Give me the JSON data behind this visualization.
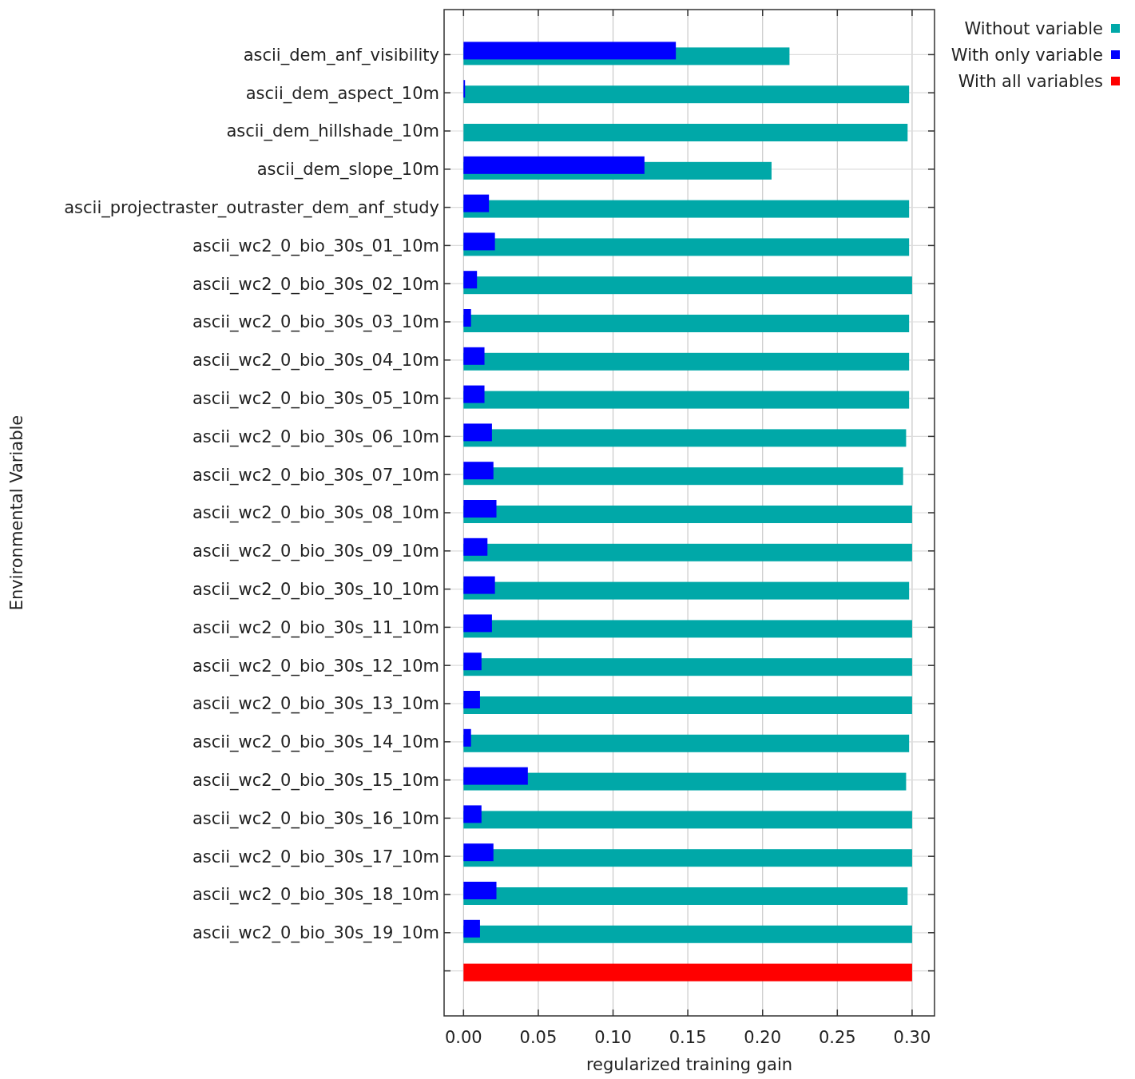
{
  "chart_data": {
    "type": "bar",
    "orientation": "horizontal",
    "xlabel": "regularized training gain",
    "ylabel": "Environmental Variable",
    "categories": [
      "ascii_dem_anf_visibility",
      "ascii_dem_aspect_10m",
      "ascii_dem_hillshade_10m",
      "ascii_dem_slope_10m",
      "ascii_projectraster_outraster_dem_anf_study",
      "ascii_wc2_0_bio_30s_01_10m",
      "ascii_wc2_0_bio_30s_02_10m",
      "ascii_wc2_0_bio_30s_03_10m",
      "ascii_wc2_0_bio_30s_04_10m",
      "ascii_wc2_0_bio_30s_05_10m",
      "ascii_wc2_0_bio_30s_06_10m",
      "ascii_wc2_0_bio_30s_07_10m",
      "ascii_wc2_0_bio_30s_08_10m",
      "ascii_wc2_0_bio_30s_09_10m",
      "ascii_wc2_0_bio_30s_10_10m",
      "ascii_wc2_0_bio_30s_11_10m",
      "ascii_wc2_0_bio_30s_12_10m",
      "ascii_wc2_0_bio_30s_13_10m",
      "ascii_wc2_0_bio_30s_14_10m",
      "ascii_wc2_0_bio_30s_15_10m",
      "ascii_wc2_0_bio_30s_16_10m",
      "ascii_wc2_0_bio_30s_17_10m",
      "ascii_wc2_0_bio_30s_18_10m",
      "ascii_wc2_0_bio_30s_19_10m",
      null
    ],
    "series": [
      {
        "name": "Without variable",
        "color": "#00a8a8",
        "values": [
          0.218,
          0.298,
          0.297,
          0.206,
          0.298,
          0.298,
          0.3,
          0.298,
          0.298,
          0.298,
          0.296,
          0.294,
          0.3,
          0.3,
          0.298,
          0.3,
          0.3,
          0.3,
          0.298,
          0.296,
          0.3,
          0.3,
          0.297,
          0.3,
          null
        ]
      },
      {
        "name": "With only variable",
        "color": "#0000ff",
        "values": [
          0.142,
          0.001,
          null,
          0.121,
          0.017,
          0.021,
          0.009,
          0.005,
          0.014,
          0.014,
          0.019,
          0.02,
          0.022,
          0.016,
          0.021,
          0.019,
          0.012,
          0.011,
          0.005,
          0.043,
          0.012,
          0.02,
          0.022,
          0.011,
          null
        ]
      },
      {
        "name": "With all variables",
        "color": "#ff0000",
        "values": [
          null,
          null,
          null,
          null,
          null,
          null,
          null,
          null,
          null,
          null,
          null,
          null,
          null,
          null,
          null,
          null,
          null,
          null,
          null,
          null,
          null,
          null,
          null,
          null,
          0.3
        ]
      }
    ],
    "xlim": [
      -0.013,
      0.315
    ],
    "xticks": [
      {
        "value": 0,
        "label": "0.00"
      },
      {
        "value": 0.05,
        "label": "0.05"
      },
      {
        "value": 0.1,
        "label": "0.10"
      },
      {
        "value": 0.15,
        "label": "0.15"
      },
      {
        "value": 0.2,
        "label": "0.20"
      },
      {
        "value": 0.25,
        "label": "0.25"
      },
      {
        "value": 0.3,
        "label": "0.30"
      }
    ],
    "grid": true,
    "legend": "top right"
  }
}
